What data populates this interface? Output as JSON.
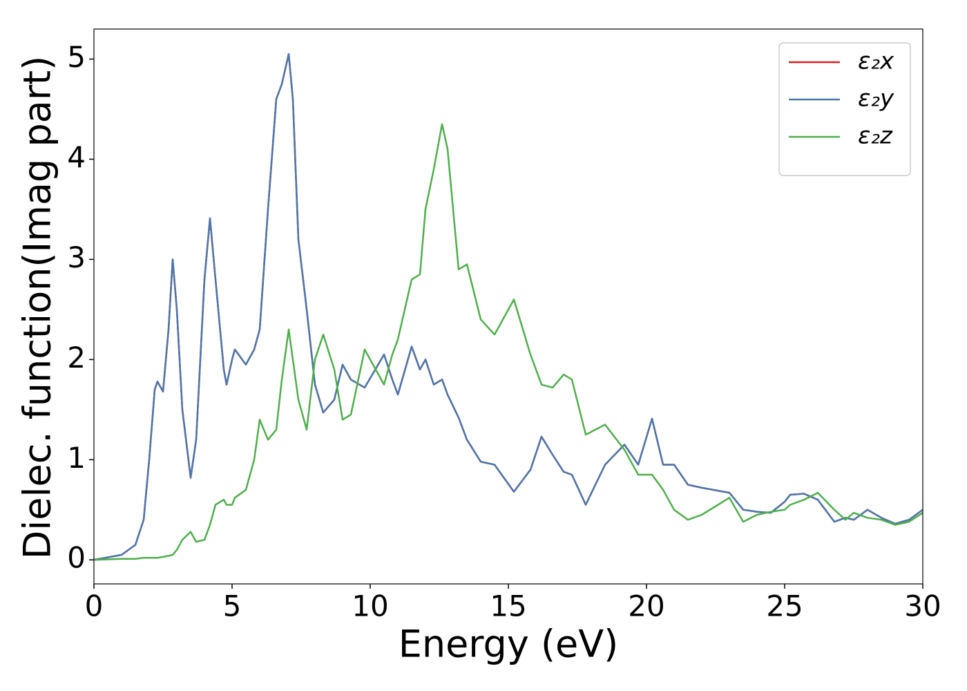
{
  "chart_data": {
    "type": "line",
    "xlabel": "Energy (eV)",
    "ylabel": "Dielec. function(Imag part)",
    "x": [
      0,
      1,
      1.5,
      1.8,
      2.0,
      2.2,
      2.3,
      2.5,
      2.7,
      2.85,
      3.0,
      3.2,
      3.5,
      3.7,
      4.0,
      4.2,
      4.4,
      4.7,
      4.8,
      5.0,
      5.1,
      5.5,
      5.8,
      6.0,
      6.3,
      6.6,
      6.8,
      7.05,
      7.2,
      7.4,
      7.7,
      8.0,
      8.3,
      8.7,
      9.0,
      9.3,
      9.8,
      10.5,
      10.8,
      11.0,
      11.5,
      11.8,
      12.0,
      12.3,
      12.6,
      12.8,
      13.2,
      13.5,
      14.0,
      14.5,
      15.2,
      15.8,
      16.2,
      16.6,
      17.0,
      17.3,
      17.8,
      18.5,
      19.2,
      19.7,
      20.2,
      20.6,
      21.0,
      21.5,
      22.0,
      23.0,
      23.5,
      24.0,
      24.5,
      25.0,
      25.2,
      25.7,
      26.2,
      26.8,
      27.2,
      27.5,
      28.0,
      28.5,
      29.0,
      29.5,
      30
    ],
    "series": [
      {
        "name": "ε₂x",
        "color": "#e41a1c",
        "values": [
          0,
          0.05,
          0.15,
          0.4,
          1.0,
          1.7,
          1.78,
          1.68,
          2.3,
          3.0,
          2.5,
          1.5,
          0.82,
          1.2,
          2.8,
          3.41,
          2.8,
          1.9,
          1.75,
          2.0,
          2.1,
          1.95,
          2.1,
          2.3,
          3.5,
          4.6,
          4.75,
          5.05,
          4.6,
          3.2,
          2.5,
          1.75,
          1.47,
          1.6,
          1.95,
          1.8,
          1.72,
          2.05,
          1.8,
          1.65,
          2.13,
          1.9,
          2.0,
          1.75,
          1.8,
          1.65,
          1.42,
          1.2,
          0.98,
          0.95,
          0.68,
          0.9,
          1.23,
          1.05,
          0.88,
          0.85,
          0.55,
          0.95,
          1.15,
          0.95,
          1.41,
          0.95,
          0.95,
          0.75,
          0.72,
          0.67,
          0.5,
          0.48,
          0.47,
          0.58,
          0.65,
          0.66,
          0.6,
          0.38,
          0.42,
          0.4,
          0.5,
          0.42,
          0.36,
          0.4,
          0.5
        ]
      },
      {
        "name": "ε₂y",
        "color": "#4a78ad",
        "values": [
          0,
          0.05,
          0.15,
          0.4,
          1.0,
          1.7,
          1.78,
          1.68,
          2.3,
          3.0,
          2.5,
          1.5,
          0.82,
          1.2,
          2.8,
          3.41,
          2.8,
          1.9,
          1.75,
          2.0,
          2.1,
          1.95,
          2.1,
          2.3,
          3.5,
          4.6,
          4.75,
          5.05,
          4.6,
          3.2,
          2.5,
          1.75,
          1.47,
          1.6,
          1.95,
          1.8,
          1.72,
          2.05,
          1.8,
          1.65,
          2.13,
          1.9,
          2.0,
          1.75,
          1.8,
          1.65,
          1.42,
          1.2,
          0.98,
          0.95,
          0.68,
          0.9,
          1.23,
          1.05,
          0.88,
          0.85,
          0.55,
          0.95,
          1.15,
          0.95,
          1.41,
          0.95,
          0.95,
          0.75,
          0.72,
          0.67,
          0.5,
          0.48,
          0.47,
          0.58,
          0.65,
          0.66,
          0.6,
          0.38,
          0.42,
          0.4,
          0.5,
          0.42,
          0.36,
          0.4,
          0.5
        ]
      },
      {
        "name": "ε₂z",
        "color": "#4daf4a",
        "values": [
          0,
          0.01,
          0.01,
          0.02,
          0.02,
          0.02,
          0.02,
          0.03,
          0.04,
          0.05,
          0.1,
          0.2,
          0.28,
          0.18,
          0.2,
          0.35,
          0.55,
          0.6,
          0.55,
          0.55,
          0.62,
          0.7,
          1.0,
          1.4,
          1.2,
          1.3,
          1.8,
          2.3,
          2.0,
          1.6,
          1.3,
          2.0,
          2.25,
          1.9,
          1.4,
          1.45,
          2.1,
          1.75,
          2.05,
          2.2,
          2.8,
          2.85,
          3.5,
          3.9,
          4.35,
          4.1,
          2.9,
          2.95,
          2.4,
          2.25,
          2.6,
          2.05,
          1.75,
          1.72,
          1.85,
          1.8,
          1.25,
          1.35,
          1.1,
          0.85,
          0.85,
          0.7,
          0.5,
          0.4,
          0.45,
          0.62,
          0.38,
          0.45,
          0.48,
          0.5,
          0.55,
          0.6,
          0.67,
          0.5,
          0.4,
          0.47,
          0.42,
          0.4,
          0.35,
          0.38,
          0.47
        ]
      }
    ],
    "xlim": [
      0,
      30
    ],
    "xticks": [
      0,
      5,
      10,
      15,
      20,
      25,
      30
    ],
    "ylim": [
      -0.24,
      5.3
    ],
    "yticks": [
      0,
      1,
      2,
      3,
      4,
      5
    ],
    "legend": "upper right",
    "grid": false
  }
}
